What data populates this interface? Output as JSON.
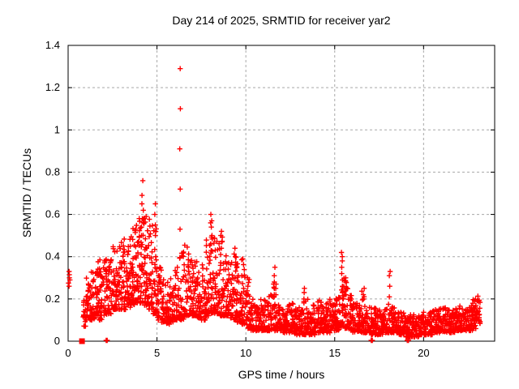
{
  "chart_data": {
    "type": "scatter",
    "title": "Day 214 of 2025, SRMTID for receiver yar2",
    "xlabel": "GPS time / hours",
    "ylabel": "SRMTID / TECUs",
    "xlim": [
      0,
      24
    ],
    "ylim": [
      0,
      1.4
    ],
    "xticks": {
      "values": [
        0,
        5,
        10,
        15,
        20
      ],
      "labels": [
        "0",
        "5",
        "10",
        "15",
        "20"
      ]
    },
    "yticks": {
      "values": [
        0,
        0.2,
        0.4,
        0.6,
        0.8,
        1,
        1.2,
        1.4
      ],
      "labels": [
        "0",
        "0.2",
        "0.4",
        "0.6",
        "0.8",
        "1",
        "1.2",
        "1.4"
      ]
    },
    "grid": {
      "shown": true,
      "dashed": true
    },
    "legend": {
      "shown": false
    },
    "marker": {
      "shape": "plus",
      "size": 7
    },
    "colors": {
      "marker": "#ff0000",
      "grid": "#a8a8a8",
      "axis": "#000000",
      "background": "#ffffff"
    },
    "point_cloud": {
      "seed": 42,
      "note": "dense scatter approximated by per-bin envelopes read from the plot",
      "bands": [
        [
          0.85,
          1.0,
          0.07,
          0.22,
          16,
          1.6
        ],
        [
          1.0,
          1.25,
          0.1,
          0.3,
          30,
          1.8
        ],
        [
          1.25,
          1.5,
          0.1,
          0.33,
          30,
          1.8
        ],
        [
          1.5,
          1.75,
          0.12,
          0.38,
          30,
          1.8
        ],
        [
          1.75,
          2.0,
          0.1,
          0.42,
          30,
          2.0
        ],
        [
          2.0,
          2.25,
          0.12,
          0.4,
          30,
          1.9
        ],
        [
          2.25,
          2.5,
          0.13,
          0.43,
          30,
          1.9
        ],
        [
          2.5,
          2.75,
          0.15,
          0.45,
          32,
          1.9
        ],
        [
          2.75,
          3.0,
          0.15,
          0.48,
          32,
          1.9
        ],
        [
          3.0,
          3.25,
          0.15,
          0.5,
          34,
          1.9
        ],
        [
          3.25,
          3.5,
          0.16,
          0.52,
          34,
          1.9
        ],
        [
          3.5,
          3.75,
          0.17,
          0.55,
          34,
          1.9
        ],
        [
          3.75,
          4.0,
          0.18,
          0.55,
          34,
          1.9
        ],
        [
          4.0,
          4.25,
          0.18,
          0.62,
          36,
          2.0
        ],
        [
          4.25,
          4.5,
          0.17,
          0.6,
          36,
          2.0
        ],
        [
          4.5,
          4.75,
          0.15,
          0.58,
          34,
          2.0
        ],
        [
          4.75,
          5.0,
          0.13,
          0.55,
          32,
          2.1
        ],
        [
          5.0,
          5.25,
          0.1,
          0.35,
          30,
          1.8
        ],
        [
          5.25,
          5.5,
          0.09,
          0.3,
          30,
          1.8
        ],
        [
          5.5,
          5.75,
          0.08,
          0.28,
          30,
          1.8
        ],
        [
          5.75,
          6.0,
          0.09,
          0.3,
          30,
          1.8
        ],
        [
          6.0,
          6.25,
          0.1,
          0.35,
          28,
          1.9
        ],
        [
          6.25,
          6.5,
          0.1,
          0.45,
          28,
          2.2
        ],
        [
          6.5,
          6.75,
          0.12,
          0.48,
          30,
          2.2
        ],
        [
          6.75,
          7.0,
          0.12,
          0.42,
          30,
          2.0
        ],
        [
          7.0,
          7.25,
          0.12,
          0.38,
          30,
          1.9
        ],
        [
          7.25,
          7.5,
          0.11,
          0.35,
          30,
          1.9
        ],
        [
          7.5,
          7.75,
          0.1,
          0.38,
          30,
          2.0
        ],
        [
          7.75,
          8.0,
          0.12,
          0.5,
          32,
          2.2
        ],
        [
          8.0,
          8.25,
          0.13,
          0.58,
          34,
          2.3
        ],
        [
          8.25,
          8.5,
          0.13,
          0.48,
          32,
          2.1
        ],
        [
          8.5,
          8.75,
          0.12,
          0.5,
          32,
          2.2
        ],
        [
          8.75,
          9.0,
          0.12,
          0.42,
          30,
          2.0
        ],
        [
          9.0,
          9.25,
          0.11,
          0.38,
          30,
          2.0
        ],
        [
          9.25,
          9.5,
          0.1,
          0.42,
          30,
          2.2
        ],
        [
          9.5,
          9.75,
          0.09,
          0.4,
          30,
          2.1
        ],
        [
          9.75,
          10.0,
          0.08,
          0.4,
          30,
          2.2
        ],
        [
          10.0,
          10.25,
          0.06,
          0.3,
          28,
          2.0
        ],
        [
          10.25,
          10.5,
          0.05,
          0.2,
          28,
          1.7
        ],
        [
          10.5,
          10.75,
          0.05,
          0.18,
          28,
          1.7
        ],
        [
          10.75,
          11.0,
          0.05,
          0.2,
          28,
          1.7
        ],
        [
          11.0,
          11.25,
          0.05,
          0.2,
          28,
          1.7
        ],
        [
          11.25,
          11.5,
          0.05,
          0.22,
          28,
          1.8
        ],
        [
          11.5,
          11.75,
          0.05,
          0.28,
          28,
          2.0
        ],
        [
          11.75,
          12.0,
          0.05,
          0.18,
          28,
          1.7
        ],
        [
          12.0,
          12.25,
          0.04,
          0.16,
          28,
          1.7
        ],
        [
          12.25,
          12.5,
          0.04,
          0.18,
          28,
          1.7
        ],
        [
          12.5,
          12.75,
          0.04,
          0.2,
          28,
          1.8
        ],
        [
          12.75,
          13.0,
          0.03,
          0.16,
          28,
          1.7
        ],
        [
          13.0,
          13.25,
          0.03,
          0.18,
          28,
          1.7
        ],
        [
          13.25,
          13.5,
          0.03,
          0.22,
          28,
          1.9
        ],
        [
          13.5,
          13.75,
          0.03,
          0.14,
          28,
          1.6
        ],
        [
          13.75,
          14.0,
          0.03,
          0.18,
          28,
          1.7
        ],
        [
          14.0,
          14.25,
          0.04,
          0.2,
          28,
          1.7
        ],
        [
          14.25,
          14.5,
          0.04,
          0.18,
          28,
          1.7
        ],
        [
          14.5,
          14.75,
          0.04,
          0.2,
          28,
          1.7
        ],
        [
          14.75,
          15.0,
          0.05,
          0.2,
          28,
          1.7
        ],
        [
          15.0,
          15.25,
          0.05,
          0.22,
          28,
          1.8
        ],
        [
          15.25,
          15.5,
          0.06,
          0.28,
          28,
          1.9
        ],
        [
          15.5,
          15.75,
          0.06,
          0.3,
          28,
          2.0
        ],
        [
          15.75,
          16.0,
          0.05,
          0.22,
          28,
          1.8
        ],
        [
          16.0,
          16.25,
          0.04,
          0.18,
          28,
          1.7
        ],
        [
          16.25,
          16.5,
          0.04,
          0.18,
          28,
          1.7
        ],
        [
          16.5,
          16.75,
          0.04,
          0.24,
          28,
          1.9
        ],
        [
          16.75,
          17.0,
          0.04,
          0.18,
          28,
          1.7
        ],
        [
          17.0,
          17.25,
          0.03,
          0.16,
          28,
          1.7
        ],
        [
          17.25,
          17.5,
          0.03,
          0.16,
          28,
          1.7
        ],
        [
          17.5,
          17.75,
          0.03,
          0.16,
          28,
          1.7
        ],
        [
          17.75,
          18.0,
          0.04,
          0.16,
          28,
          1.7
        ],
        [
          18.0,
          18.25,
          0.04,
          0.18,
          28,
          1.7
        ],
        [
          18.25,
          18.5,
          0.04,
          0.16,
          28,
          1.7
        ],
        [
          18.5,
          18.75,
          0.03,
          0.14,
          28,
          1.6
        ],
        [
          18.75,
          19.0,
          0.03,
          0.14,
          28,
          1.6
        ],
        [
          19.0,
          19.25,
          0.02,
          0.13,
          28,
          1.6
        ],
        [
          19.25,
          19.5,
          0.02,
          0.13,
          28,
          1.6
        ],
        [
          19.5,
          19.75,
          0.02,
          0.12,
          28,
          1.6
        ],
        [
          19.75,
          20.0,
          0.03,
          0.13,
          28,
          1.6
        ],
        [
          20.0,
          20.25,
          0.03,
          0.14,
          28,
          1.6
        ],
        [
          20.25,
          20.5,
          0.03,
          0.14,
          28,
          1.6
        ],
        [
          20.5,
          20.75,
          0.04,
          0.15,
          28,
          1.6
        ],
        [
          20.75,
          21.0,
          0.04,
          0.16,
          28,
          1.6
        ],
        [
          21.0,
          21.25,
          0.04,
          0.16,
          28,
          1.6
        ],
        [
          21.25,
          21.5,
          0.04,
          0.15,
          28,
          1.6
        ],
        [
          21.5,
          21.75,
          0.04,
          0.15,
          28,
          1.6
        ],
        [
          21.75,
          22.0,
          0.05,
          0.16,
          28,
          1.6
        ],
        [
          22.0,
          22.25,
          0.05,
          0.17,
          28,
          1.6
        ],
        [
          22.25,
          22.5,
          0.05,
          0.16,
          28,
          1.6
        ],
        [
          22.5,
          22.75,
          0.05,
          0.18,
          30,
          1.6
        ],
        [
          22.75,
          23.0,
          0.06,
          0.2,
          32,
          1.5
        ],
        [
          23.0,
          23.2,
          0.08,
          0.22,
          20,
          1.4
        ]
      ],
      "columns": [
        {
          "x": 0.05,
          "ys": [
            0.26,
            0.275,
            0.29,
            0.3,
            0.315,
            0.33
          ]
        },
        {
          "x": 4.18,
          "ys": [
            0.5,
            0.54,
            0.58,
            0.62,
            0.65,
            0.69,
            0.76
          ]
        },
        {
          "x": 4.9,
          "ys": [
            0.5,
            0.55,
            0.6,
            0.65
          ]
        },
        {
          "x": 6.27,
          "ys": [
            0.53,
            0.72,
            0.91,
            1.1,
            1.29
          ]
        },
        {
          "x": 8.05,
          "ys": [
            0.46,
            0.5,
            0.54,
            0.57,
            0.6
          ]
        },
        {
          "x": 8.6,
          "ys": [
            0.44,
            0.47,
            0.5,
            0.52
          ]
        },
        {
          "x": 9.4,
          "ys": [
            0.36,
            0.4,
            0.44
          ]
        },
        {
          "x": 10.15,
          "ys": [
            0.22,
            0.26,
            0.3
          ]
        },
        {
          "x": 11.62,
          "ys": [
            0.22,
            0.25,
            0.28,
            0.31,
            0.35
          ]
        },
        {
          "x": 13.3,
          "ys": [
            0.2,
            0.23,
            0.25
          ]
        },
        {
          "x": 15.42,
          "ys": [
            0.2,
            0.23,
            0.26,
            0.29,
            0.32,
            0.35,
            0.38,
            0.4,
            0.42
          ]
        },
        {
          "x": 15.62,
          "ys": [
            0.22,
            0.25,
            0.28,
            0.3
          ]
        },
        {
          "x": 16.62,
          "ys": [
            0.2,
            0.22,
            0.25
          ]
        },
        {
          "x": 18.12,
          "ys": [
            0.21,
            0.26,
            0.31,
            0.33
          ]
        }
      ],
      "zero_points": [
        [
          2.14,
          0.004
        ],
        [
          2.2,
          0.004
        ],
        [
          17.05,
          0.004
        ],
        [
          17.12,
          0.004
        ],
        [
          19.08,
          0.004
        ],
        [
          19.15,
          0.004
        ]
      ],
      "square_point": [
        0.78,
        0.0
      ]
    }
  }
}
